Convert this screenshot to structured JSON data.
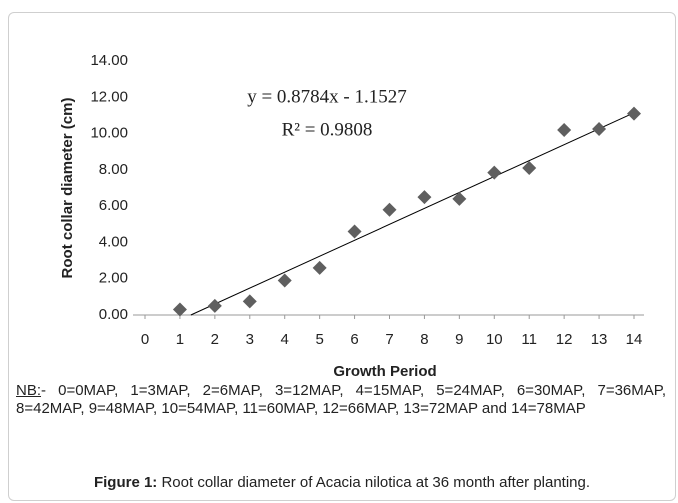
{
  "chart_data": {
    "type": "scatter",
    "x_label": "Growth Period",
    "y_label": "Root collar diameter (cm)",
    "series": [
      {
        "color": "#5f5f5f",
        "x": [
          1,
          2,
          3,
          4,
          5,
          6,
          7,
          8,
          9,
          10,
          11,
          12,
          13,
          14
        ],
        "values": [
          0.3,
          0.5,
          0.75,
          1.9,
          2.6,
          4.6,
          5.8,
          6.5,
          6.4,
          7.85,
          8.1,
          10.2,
          10.25,
          11.1
        ]
      }
    ],
    "trendline": {
      "slope": 0.8784,
      "intercept": -1.1527,
      "color": "#000000"
    },
    "equation": "y = 0.8784x - 1.1527",
    "r_squared": "R² = 0.9808",
    "xlim": [
      0,
      14
    ],
    "xticks": [
      0,
      1,
      2,
      3,
      4,
      5,
      6,
      7,
      8,
      9,
      10,
      11,
      12,
      13,
      14
    ],
    "ylim": [
      0,
      14
    ],
    "yticks": [
      {
        "value": 0,
        "label": "0.00"
      },
      {
        "value": 2,
        "label": "2.00"
      },
      {
        "value": 4,
        "label": "4.00"
      },
      {
        "value": 6,
        "label": "6.00"
      },
      {
        "value": 8,
        "label": "8.00"
      },
      {
        "value": 10,
        "label": "10.00"
      },
      {
        "value": 12,
        "label": "12.00"
      },
      {
        "value": 14,
        "label": "14.00"
      }
    ],
    "grid": false
  },
  "note": {
    "prefix": "NB:",
    "text": "- 0=0MAP, 1=3MAP, 2=6MAP, 3=12MAP, 4=15MAP, 5=24MAP, 6=30MAP, 7=36MAP, 8=42MAP, 9=48MAP, 10=54MAP, 11=60MAP, 12=66MAP, 13=72MAP and 14=78MAP"
  },
  "caption": {
    "label": "Figure 1:",
    "text": " Root collar diameter of Acacia nilotica at 36 month after planting."
  }
}
